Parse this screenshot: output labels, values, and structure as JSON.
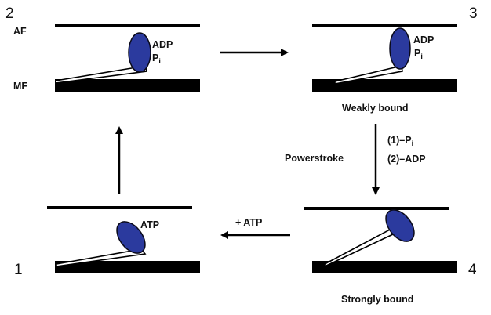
{
  "filament_labels": {
    "actin": "AF",
    "myosin": "MF"
  },
  "states": [
    {
      "number": "1",
      "nucleotide": "ATP",
      "nucleotide_sub": "",
      "caption": ""
    },
    {
      "number": "2",
      "nucleotide": "ADP",
      "nucleotide_sub": "P",
      "nucleotide_sub_index": "i",
      "caption": ""
    },
    {
      "number": "3",
      "nucleotide": "ADP",
      "nucleotide_sub": "P",
      "nucleotide_sub_index": "i",
      "caption": "Weakly bound"
    },
    {
      "number": "4",
      "nucleotide": "",
      "nucleotide_sub": "",
      "caption": "Strongly bound"
    }
  ],
  "transitions": {
    "step_3_to_4_label": "Powerstroke",
    "step_3_to_4_first": "(1)–P",
    "step_3_to_4_first_sub": "i",
    "step_3_to_4_second": "(2)–ADP",
    "step_4_to_1_label": "+ ATP"
  },
  "colors": {
    "head_fill": "#2b3a9e",
    "head_stroke": "#0a0a1a",
    "filament": "#000000"
  }
}
